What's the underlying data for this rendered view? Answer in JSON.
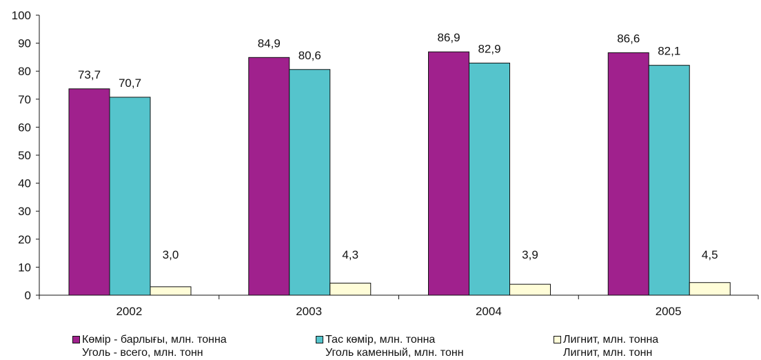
{
  "chart_data": {
    "type": "bar",
    "categories": [
      "2002",
      "2003",
      "2004",
      "2005"
    ],
    "series": [
      {
        "name": "Көмір - барлығы, млн. тонна",
        "name_ru": "Уголь - всего, млн. тонн",
        "values": [
          73.7,
          84.9,
          86.9,
          86.6
        ],
        "labels": [
          "73,7",
          "84,9",
          "86,9",
          "86,6"
        ],
        "color": "#A0218D"
      },
      {
        "name": "Тас көмір, млн. тонна",
        "name_ru": "Уголь каменный, млн. тонн",
        "values": [
          70.7,
          80.6,
          82.9,
          82.1
        ],
        "labels": [
          "70,7",
          "80,6",
          "82,9",
          "82,1"
        ],
        "color": "#55C4CC"
      },
      {
        "name": "Лигнит, млн. тонна",
        "name_ru": "Лигнит, млн. тонн",
        "values": [
          3.0,
          4.3,
          3.9,
          4.5
        ],
        "labels": [
          "3,0",
          "4,3",
          "3,9",
          "4,5"
        ],
        "color": "#FFFDD8"
      }
    ],
    "yticks": [
      "0",
      "10",
      "20",
      "30",
      "40",
      "50",
      "60",
      "70",
      "80",
      "90",
      "100"
    ],
    "ylim": [
      0,
      100
    ],
    "title": "",
    "xlabel": "",
    "ylabel": "",
    "grid": false,
    "legend_position": "bottom"
  }
}
